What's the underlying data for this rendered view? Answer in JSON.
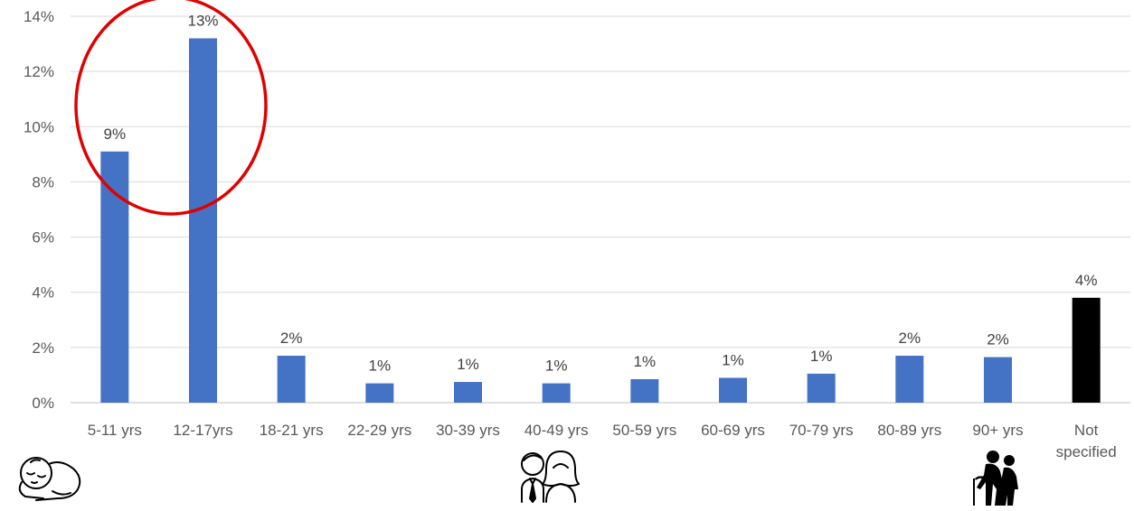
{
  "chart_data": {
    "type": "bar",
    "title": "",
    "xlabel": "",
    "ylabel": "",
    "ylim": [
      0,
      14
    ],
    "y_ticks": [
      "0%",
      "2%",
      "4%",
      "6%",
      "8%",
      "10%",
      "12%",
      "14%"
    ],
    "grid": true,
    "categories": [
      "5-11 yrs",
      "12-17yrs",
      "18-21 yrs",
      "22-29 yrs",
      "30-39 yrs",
      "40-49 yrs",
      "50-59 yrs",
      "60-69 yrs",
      "70-79 yrs",
      "80-89 yrs",
      "90+ yrs",
      "Not specified"
    ],
    "values": [
      9.1,
      13.2,
      1.7,
      0.7,
      0.75,
      0.7,
      0.85,
      0.9,
      1.05,
      1.7,
      1.65,
      3.8
    ],
    "data_labels": [
      "9%",
      "13%",
      "2%",
      "1%",
      "1%",
      "1%",
      "1%",
      "1%",
      "1%",
      "2%",
      "2%",
      "4%"
    ],
    "bar_colors": [
      "#4472c4",
      "#4472c4",
      "#4472c4",
      "#4472c4",
      "#4472c4",
      "#4472c4",
      "#4472c4",
      "#4472c4",
      "#4472c4",
      "#4472c4",
      "#4472c4",
      "#000000"
    ],
    "highlight": {
      "shape": "ellipse",
      "color": "#e00000",
      "categories": [
        "5-11 yrs",
        "12-17yrs"
      ]
    },
    "icons": [
      {
        "name": "sleeping-baby-icon",
        "below_category": "5-11 yrs"
      },
      {
        "name": "adult-couple-icon",
        "below_category": "40-49 yrs"
      },
      {
        "name": "elderly-couple-icon",
        "below_category": "90+ yrs"
      }
    ]
  }
}
